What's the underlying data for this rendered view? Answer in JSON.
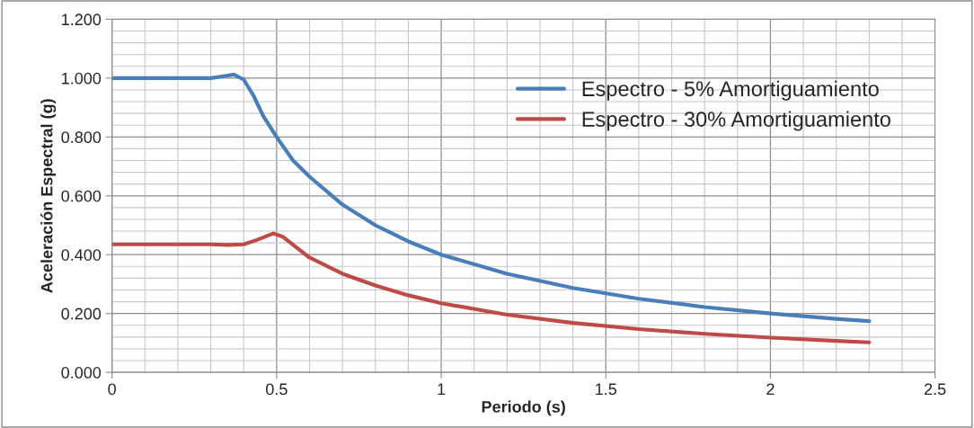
{
  "chart_data": {
    "type": "line",
    "xlabel": "Periodo (s)",
    "ylabel": "Aceleración Espectral (g)",
    "xlim": [
      0,
      2.5
    ],
    "xticks": [
      0,
      0.5,
      1,
      1.5,
      2,
      2.5
    ],
    "ylim": [
      0,
      1.2
    ],
    "yticks": [
      {
        "value": 0,
        "label": "0.000"
      },
      {
        "value": 0.2,
        "label": "0.200"
      },
      {
        "value": 0.4,
        "label": "0.400"
      },
      {
        "value": 0.6,
        "label": "0.600"
      },
      {
        "value": 0.8,
        "label": "0.800"
      },
      {
        "value": 1.0,
        "label": "1.000"
      },
      {
        "value": 1.2,
        "label": "1.200"
      }
    ],
    "grid": true,
    "legend": "top right",
    "line_style": "solid",
    "marker": "none",
    "series": [
      {
        "name": "Espectro - 5% Amortiguamiento",
        "color": "#4a7ebb",
        "x": [
          0,
          0.1,
          0.2,
          0.3,
          0.33,
          0.37,
          0.4,
          0.43,
          0.46,
          0.5,
          0.55,
          0.6,
          0.7,
          0.8,
          0.9,
          1.0,
          1.2,
          1.4,
          1.6,
          1.8,
          2.0,
          2.2,
          2.3
        ],
        "values": [
          1.0,
          1.0,
          1.0,
          1.0,
          1.005,
          1.012,
          0.995,
          0.94,
          0.87,
          0.8,
          0.72,
          0.665,
          0.57,
          0.5,
          0.445,
          0.4,
          0.335,
          0.287,
          0.25,
          0.222,
          0.2,
          0.182,
          0.174
        ]
      },
      {
        "name": "Espectro - 30% Amortiguamiento",
        "color": "#be4b48",
        "x": [
          0,
          0.1,
          0.2,
          0.3,
          0.35,
          0.4,
          0.44,
          0.49,
          0.52,
          0.56,
          0.6,
          0.7,
          0.8,
          0.9,
          1.0,
          1.2,
          1.4,
          1.6,
          1.8,
          2.0,
          2.2,
          2.3
        ],
        "values": [
          0.435,
          0.435,
          0.435,
          0.435,
          0.433,
          0.435,
          0.45,
          0.472,
          0.46,
          0.425,
          0.39,
          0.335,
          0.295,
          0.262,
          0.235,
          0.196,
          0.168,
          0.147,
          0.131,
          0.118,
          0.107,
          0.102
        ]
      }
    ]
  }
}
